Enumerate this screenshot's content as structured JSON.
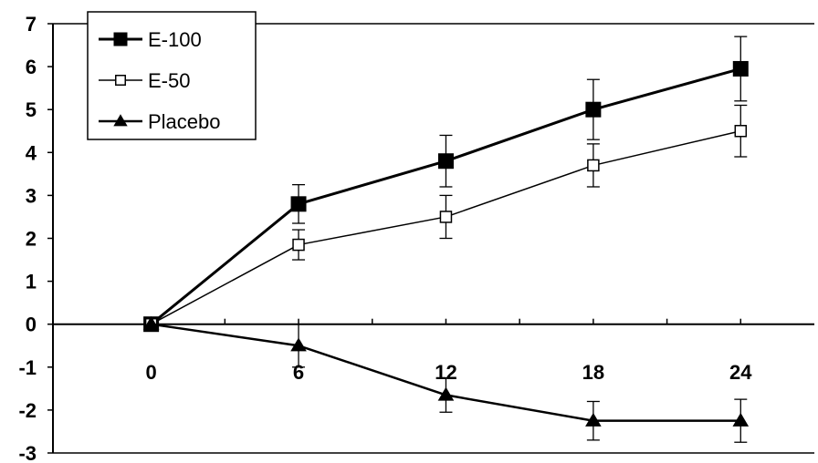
{
  "chart_data": {
    "type": "line",
    "title": "",
    "xlabel": "",
    "ylabel": "",
    "x": [
      0,
      6,
      12,
      18,
      24
    ],
    "x_ticks": [
      "0",
      "6",
      "12",
      "18",
      "24"
    ],
    "y_ticks": [
      "7",
      "6",
      "5",
      "4",
      "3",
      "2",
      "1",
      "0",
      "-1",
      "-2",
      "-3"
    ],
    "ylim": [
      -3,
      7
    ],
    "xlim": [
      -4,
      27
    ],
    "grid": false,
    "legend_position": "top-left",
    "series": [
      {
        "name": "E-100",
        "marker": "filled-square",
        "color": "#000000",
        "values": [
          0,
          2.8,
          3.8,
          5.0,
          5.95
        ],
        "errors": [
          0,
          0.45,
          0.6,
          0.7,
          0.75
        ]
      },
      {
        "name": "E-50",
        "marker": "open-square",
        "color": "#000000",
        "values": [
          0,
          1.85,
          2.5,
          3.7,
          4.5
        ],
        "errors": [
          0,
          0.35,
          0.5,
          0.5,
          0.6
        ]
      },
      {
        "name": "Placebo",
        "marker": "filled-triangle",
        "color": "#000000",
        "values": [
          0,
          -0.5,
          -1.65,
          -2.25,
          -2.25
        ],
        "errors": [
          0,
          0.5,
          0.4,
          0.45,
          0.5
        ]
      }
    ]
  }
}
